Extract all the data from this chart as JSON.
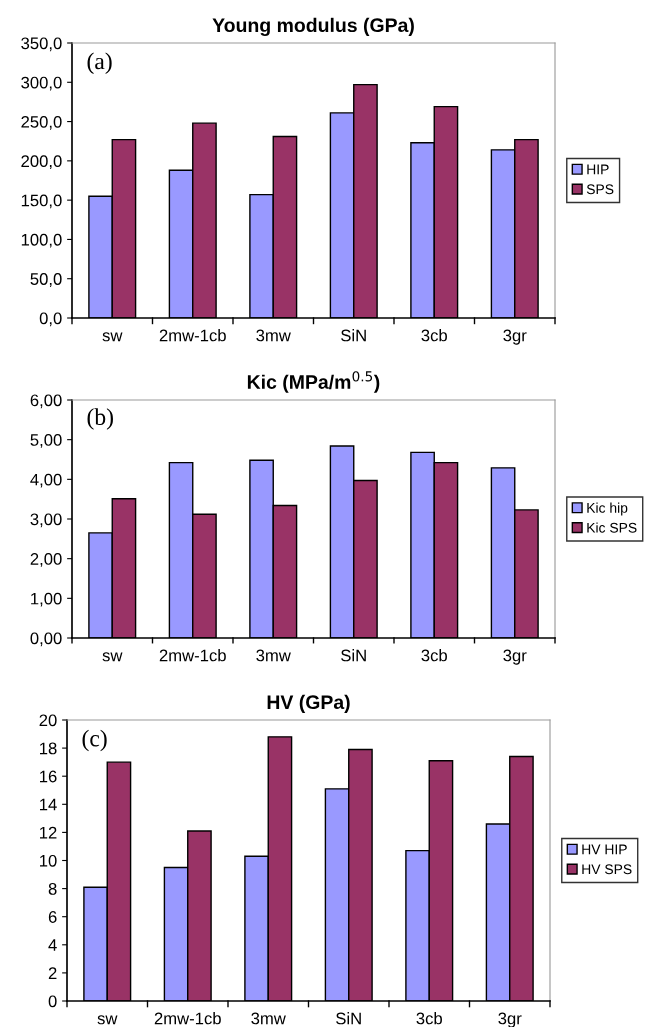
{
  "chart_data": [
    {
      "type": "bar",
      "title": "Young modulus (GPa)",
      "categories": [
        "sw",
        "2mw-1cb",
        "3mw",
        "SiN",
        "3cb",
        "3gr"
      ],
      "series": [
        {
          "name": "HIP",
          "color": "#9999ff",
          "values": [
            155,
            188,
            157,
            261,
            223,
            214
          ]
        },
        {
          "name": "SPS",
          "color": "#993366",
          "values": [
            227,
            248,
            231,
            297,
            269,
            227
          ]
        }
      ],
      "ylim": [
        0,
        350
      ],
      "yticks": [
        {
          "value": 0,
          "label": "0,0"
        },
        {
          "value": 50,
          "label": "50,0"
        },
        {
          "value": 100,
          "label": "100,0"
        },
        {
          "value": 150,
          "label": "150,0"
        },
        {
          "value": 200,
          "label": "200,0"
        },
        {
          "value": 250,
          "label": "250,0"
        },
        {
          "value": 300,
          "label": "300,0"
        },
        {
          "value": 350,
          "label": "350,0"
        }
      ],
      "annotations": [
        "(a)"
      ],
      "legend": "right",
      "grid": false
    },
    {
      "type": "bar",
      "title": "Kic (MPa/m$^{0.5}$)",
      "categories": [
        "sw",
        "2mw-1cb",
        "3mw",
        "SiN",
        "3cb",
        "3gr"
      ],
      "series": [
        {
          "name": "Kic hip",
          "color": "#9999ff",
          "values": [
            2.65,
            4.42,
            4.48,
            4.84,
            4.68,
            4.29
          ]
        },
        {
          "name": "Kic SPS",
          "color": "#993366",
          "values": [
            3.51,
            3.12,
            3.34,
            3.97,
            4.42,
            3.23
          ]
        }
      ],
      "ylim": [
        0,
        6
      ],
      "yticks": [
        {
          "value": 0,
          "label": "0,00"
        },
        {
          "value": 1,
          "label": "1,00"
        },
        {
          "value": 2,
          "label": "2,00"
        },
        {
          "value": 3,
          "label": "3,00"
        },
        {
          "value": 4,
          "label": "4,00"
        },
        {
          "value": 5,
          "label": "5,00"
        },
        {
          "value": 6,
          "label": "6,00"
        }
      ],
      "annotations": [
        "(b)"
      ],
      "legend": "right",
      "grid": false
    },
    {
      "type": "bar",
      "title": "HV (GPa)",
      "categories": [
        "sw",
        "2mw-1cb",
        "3mw",
        "SiN",
        "3cb",
        "3gr"
      ],
      "series": [
        {
          "name": "HV HIP",
          "color": "#9999ff",
          "values": [
            8.1,
            9.5,
            10.3,
            15.1,
            10.7,
            12.6
          ]
        },
        {
          "name": "HV SPS",
          "color": "#993366",
          "values": [
            17.0,
            12.1,
            18.8,
            17.9,
            17.1,
            17.4
          ]
        }
      ],
      "ylim": [
        0,
        20
      ],
      "yticks": [
        0,
        2,
        4,
        6,
        8,
        10,
        12,
        14,
        16,
        18,
        20
      ],
      "annotations": [
        "(c)"
      ],
      "legend": "right",
      "grid": false
    }
  ]
}
